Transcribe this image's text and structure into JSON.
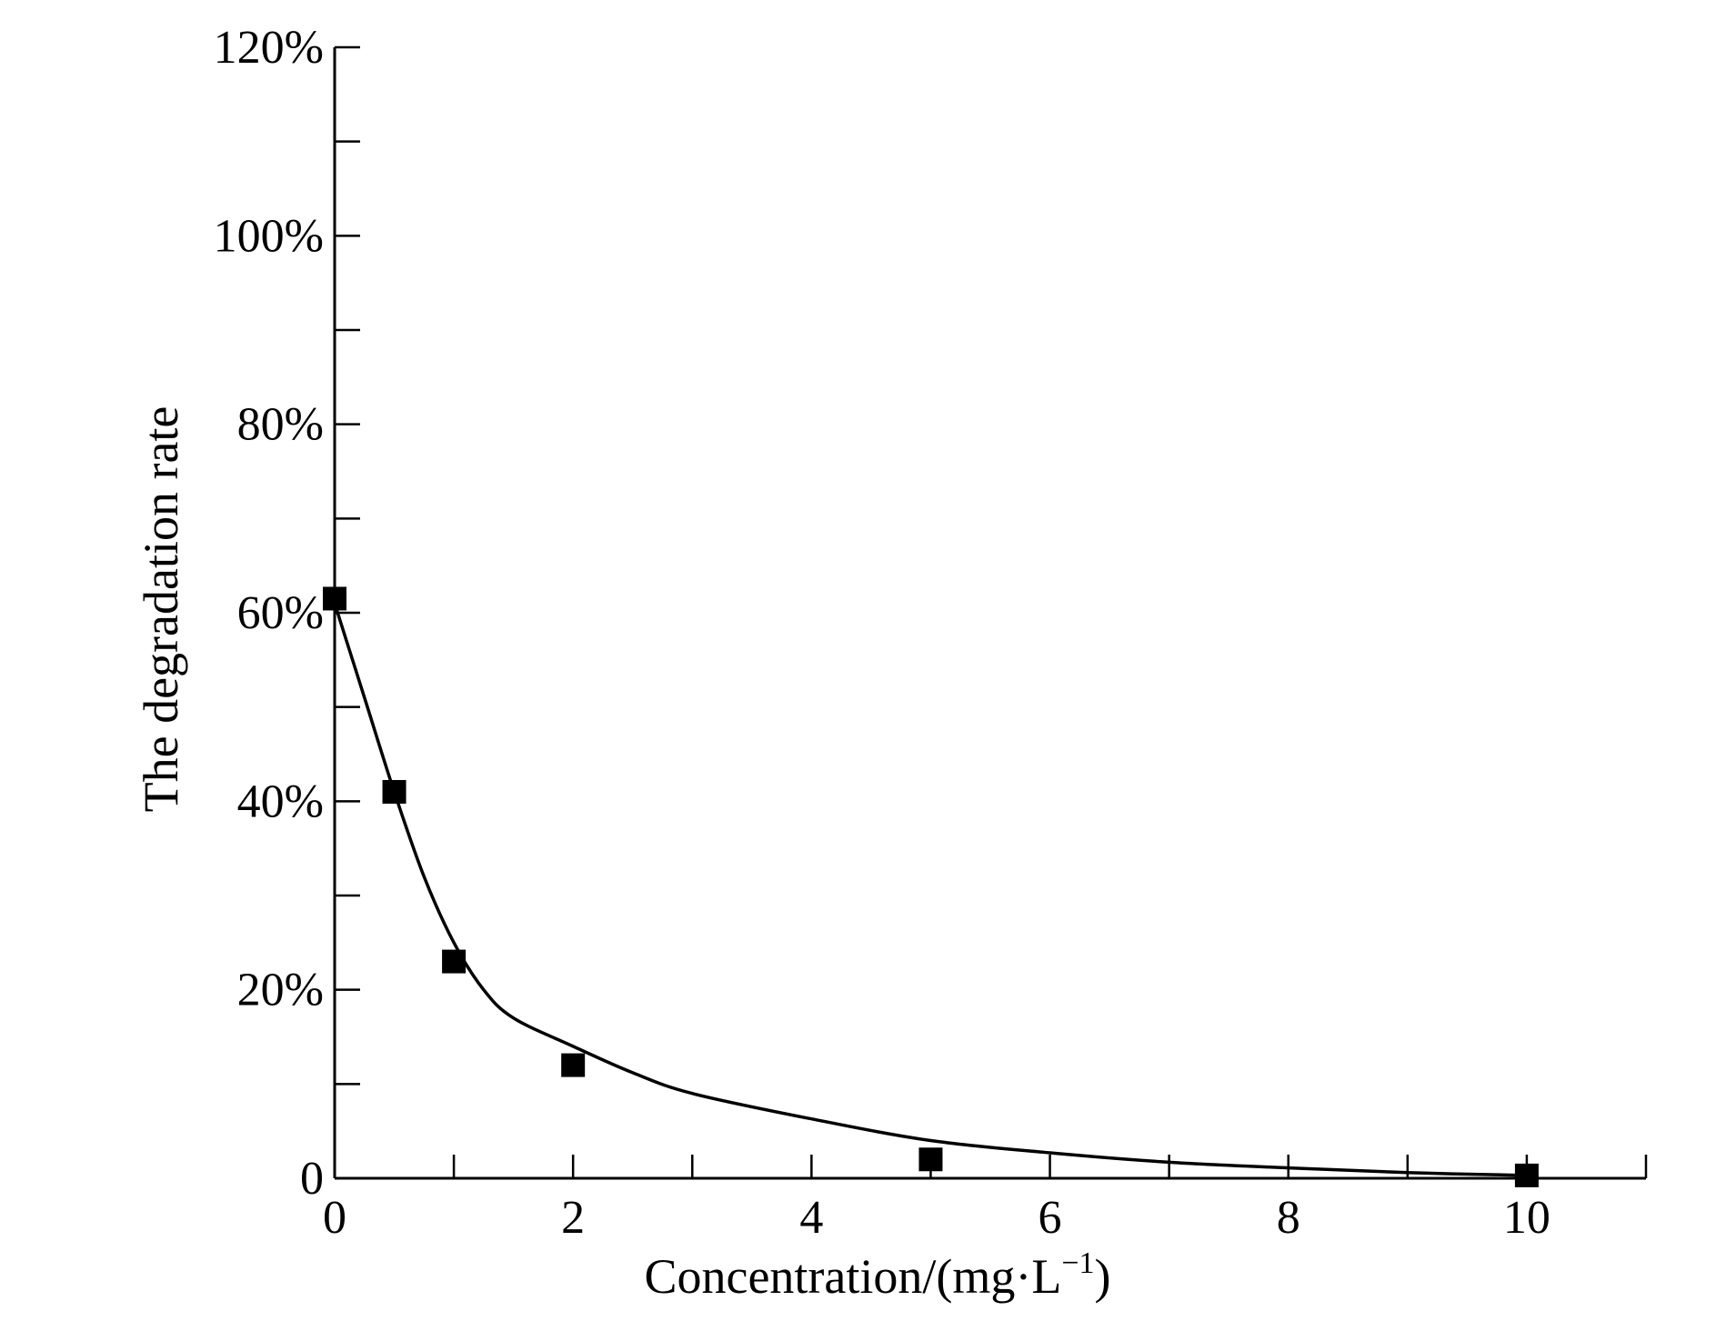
{
  "chart_data": {
    "type": "scatter",
    "title": "",
    "xlabel": "Concentration/(mg·L",
    "xlabel_sup": "−1",
    "xlabel_close": ")",
    "ylabel": "The degradation rate",
    "xlim": [
      0,
      11
    ],
    "ylim": [
      0,
      120
    ],
    "x_ticks": [
      0,
      2,
      4,
      6,
      8,
      10
    ],
    "x_tick_labels": [
      "0",
      "2",
      "4",
      "6",
      "8",
      "10"
    ],
    "x_minor_ticks": [
      1,
      3,
      5,
      7,
      9,
      11
    ],
    "y_ticks": [
      0,
      20,
      40,
      60,
      80,
      100,
      120
    ],
    "y_tick_labels": [
      "0",
      "20%",
      "40%",
      "60%",
      "80%",
      "100%",
      "120%"
    ],
    "y_minor_ticks": [
      10,
      30,
      50,
      70,
      90,
      110
    ],
    "grid": false,
    "series": [
      {
        "kind": "scatter",
        "marker": "square",
        "x": [
          0,
          0.5,
          1,
          2,
          5,
          10
        ],
        "y": [
          61.5,
          41,
          23,
          12,
          2,
          0.3
        ]
      },
      {
        "kind": "line",
        "x": [
          0,
          0.25,
          0.5,
          0.75,
          1,
          1.25,
          1.5,
          2,
          2.5,
          3,
          4,
          5,
          6,
          7,
          8,
          9,
          10
        ],
        "y": [
          61,
          51,
          41,
          32,
          25,
          20,
          17,
          14,
          11.2,
          9,
          6.3,
          4,
          2.7,
          1.7,
          1.1,
          0.6,
          0.3
        ]
      }
    ],
    "colors": {
      "marker": "#000000",
      "line": "#000000",
      "axis": "#000000"
    }
  }
}
